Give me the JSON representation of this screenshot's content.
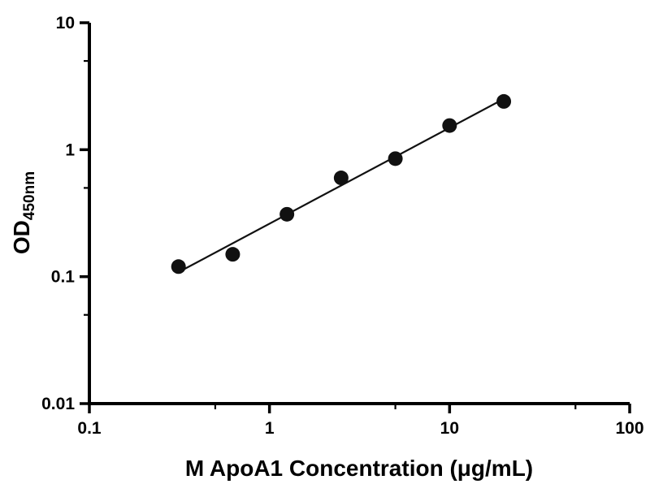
{
  "figure": {
    "background": "#ffffff"
  },
  "chart_data": {
    "type": "scatter",
    "title": "",
    "xlabel": "M ApoA1 Concentration (μg/mL)",
    "ylabel": "OD450nm",
    "ylabel_main": "OD",
    "ylabel_sub": "450nm",
    "xscale": "log",
    "yscale": "log",
    "xlim": [
      0.1,
      100
    ],
    "ylim": [
      0.01,
      10
    ],
    "x_ticks": [
      {
        "value": 0.1,
        "label": "0.1"
      },
      {
        "value": 1,
        "label": "1"
      },
      {
        "value": 10,
        "label": "10"
      },
      {
        "value": 100,
        "label": "100"
      }
    ],
    "y_ticks": [
      {
        "value": 0.01,
        "label": "0.01"
      },
      {
        "value": 0.1,
        "label": "0.1"
      },
      {
        "value": 1,
        "label": "1"
      },
      {
        "value": 10,
        "label": "10"
      }
    ],
    "x_minor_ticks": [
      0.5,
      5,
      50
    ],
    "y_minor_ticks": [
      0.05,
      0.5,
      5
    ],
    "points": {
      "x": [
        0.3125,
        0.625,
        1.25,
        2.5,
        5,
        10,
        20
      ],
      "y": [
        0.12,
        0.15,
        0.31,
        0.6,
        0.85,
        1.55,
        2.4
      ]
    },
    "trendline": {
      "show": true,
      "fit": "linear-in-log-log"
    },
    "marker": {
      "shape": "circle",
      "color": "#111111",
      "radius_px": 9
    },
    "line_color": "#111111",
    "axis_color": "#000000",
    "grid": false,
    "legend": "none"
  }
}
